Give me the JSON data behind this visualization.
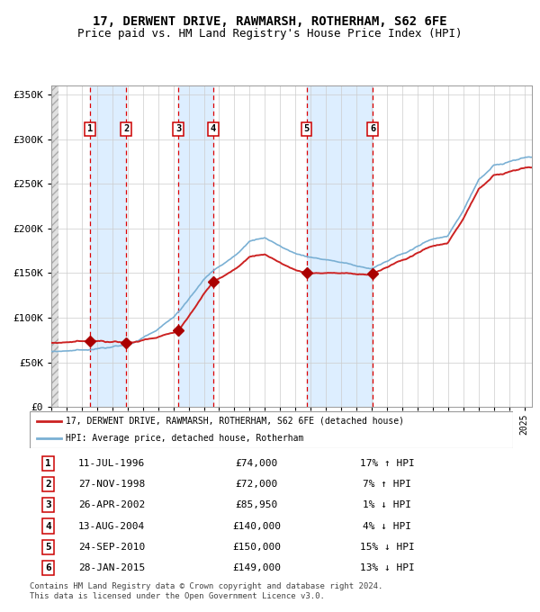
{
  "title": "17, DERWENT DRIVE, RAWMARSH, ROTHERHAM, S62 6FE",
  "subtitle": "Price paid vs. HM Land Registry's House Price Index (HPI)",
  "ylim": [
    0,
    360000
  ],
  "yticks": [
    0,
    50000,
    100000,
    150000,
    200000,
    250000,
    300000,
    350000
  ],
  "ytick_labels": [
    "£0",
    "£50K",
    "£100K",
    "£150K",
    "£200K",
    "£250K",
    "£300K",
    "£350K"
  ],
  "xlim_start": 1994.0,
  "xlim_end": 2025.5,
  "sale_dates": [
    1996.53,
    1998.9,
    2002.32,
    2004.62,
    2010.73,
    2015.07
  ],
  "sale_prices": [
    74000,
    72000,
    85950,
    140000,
    150000,
    149000
  ],
  "sale_labels": [
    "1",
    "2",
    "3",
    "4",
    "5",
    "6"
  ],
  "hpi_line_color": "#7ab0d4",
  "price_line_color": "#cc2222",
  "marker_color": "#aa0000",
  "dashed_line_color": "#dd0000",
  "shade_color": "#ddeeff",
  "title_fontsize": 10,
  "subtitle_fontsize": 9,
  "legend_line1": "17, DERWENT DRIVE, RAWMARSH, ROTHERHAM, S62 6FE (detached house)",
  "legend_line2": "HPI: Average price, detached house, Rotherham",
  "table_rows": [
    [
      "1",
      "11-JUL-1996",
      "£74,000",
      "17% ↑ HPI"
    ],
    [
      "2",
      "27-NOV-1998",
      "£72,000",
      "7% ↑ HPI"
    ],
    [
      "3",
      "26-APR-2002",
      "£85,950",
      "1% ↓ HPI"
    ],
    [
      "4",
      "13-AUG-2004",
      "£140,000",
      "4% ↓ HPI"
    ],
    [
      "5",
      "24-SEP-2010",
      "£150,000",
      "15% ↓ HPI"
    ],
    [
      "6",
      "28-JAN-2015",
      "£149,000",
      "13% ↓ HPI"
    ]
  ],
  "footer_text": "Contains HM Land Registry data © Crown copyright and database right 2024.\nThis data is licensed under the Open Government Licence v3.0."
}
